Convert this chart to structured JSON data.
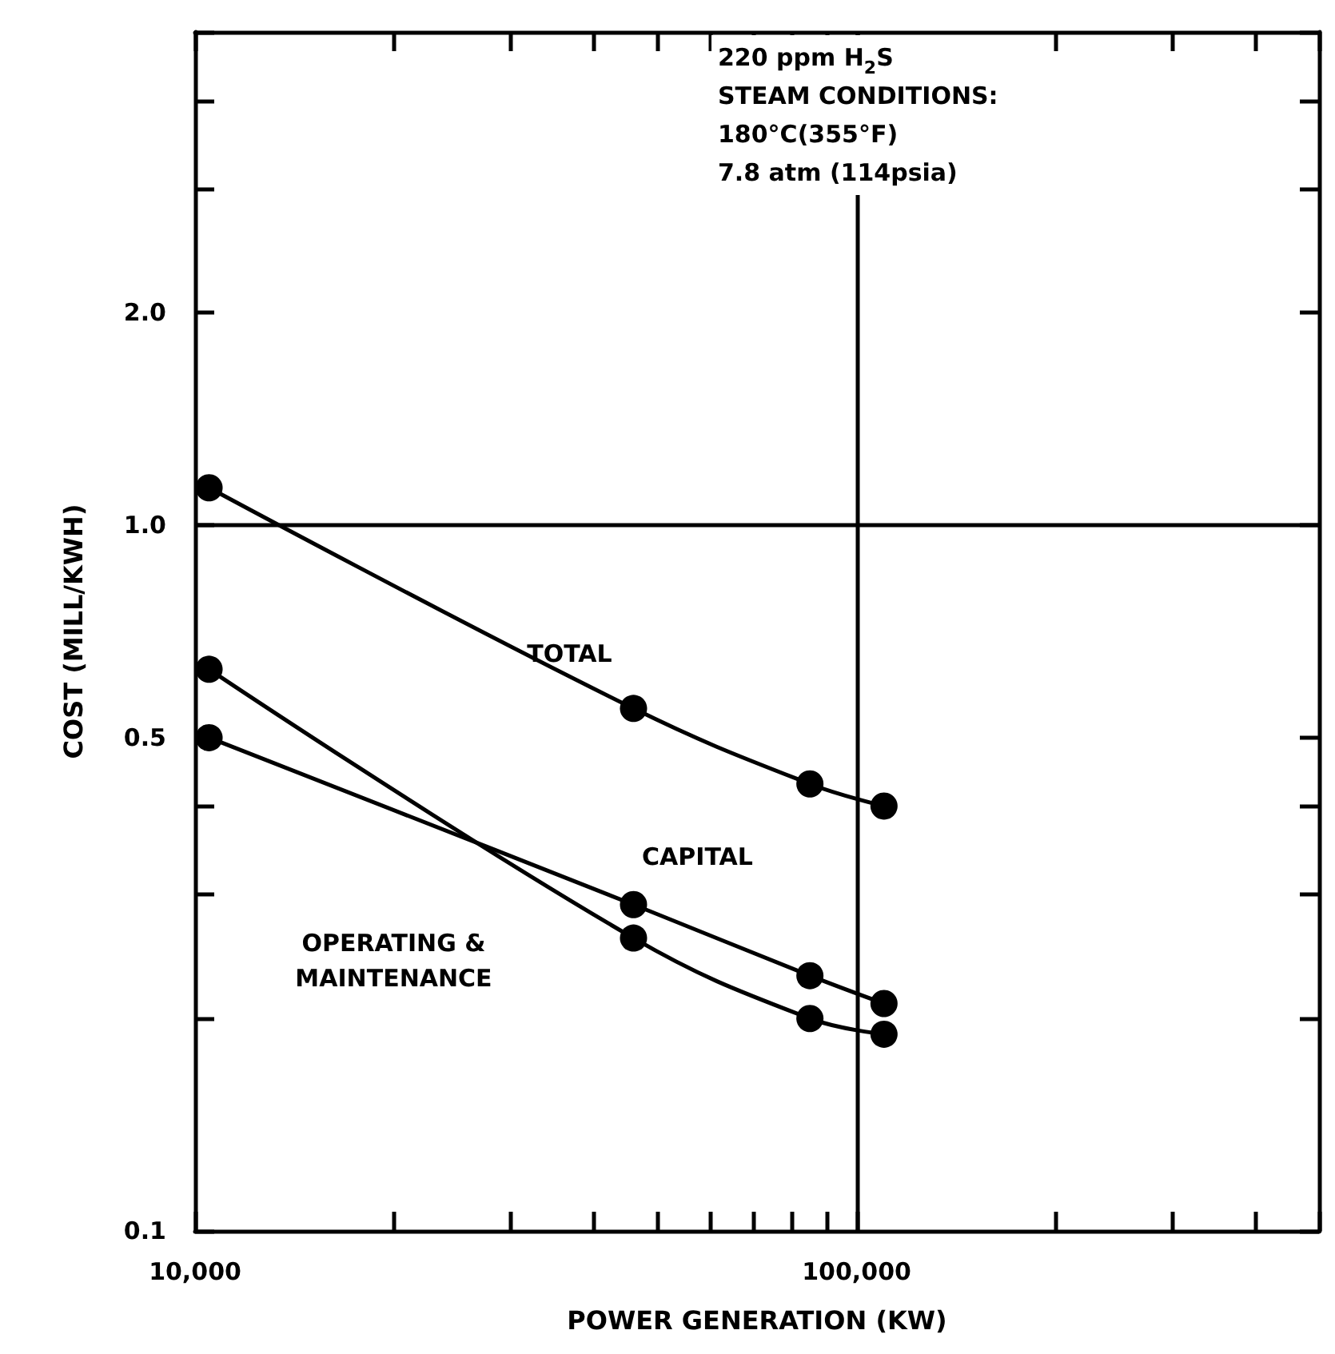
{
  "chart_data": {
    "type": "line",
    "xlabel": "POWER GENERATION (KW)",
    "ylabel": "COST (MILL/KWH)",
    "log": "xy",
    "xlim": [
      10000,
      500000
    ],
    "ylim": [
      0.1,
      5
    ],
    "xticks": [
      {
        "value": 10000,
        "label": "10,000"
      },
      {
        "value": 20000,
        "label": null
      },
      {
        "value": 30000,
        "label": null
      },
      {
        "value": 40000,
        "label": null
      },
      {
        "value": 50000,
        "label": null
      },
      {
        "value": 60000,
        "label": null
      },
      {
        "value": 70000,
        "label": null
      },
      {
        "value": 80000,
        "label": null
      },
      {
        "value": 90000,
        "label": null
      },
      {
        "value": 100000,
        "label": "100,000"
      },
      {
        "value": 200000,
        "label": null
      },
      {
        "value": 300000,
        "label": null
      },
      {
        "value": 400000,
        "label": null
      },
      {
        "value": 500000,
        "label": null
      }
    ],
    "yticks": [
      {
        "value": 0.1,
        "label": "0.1"
      },
      {
        "value": 0.2,
        "label": null
      },
      {
        "value": 0.3,
        "label": null
      },
      {
        "value": 0.4,
        "label": null
      },
      {
        "value": 0.5,
        "label": "0.5"
      },
      {
        "value": 1,
        "label": "1.0"
      },
      {
        "value": 2,
        "label": "2.0"
      },
      {
        "value": 3,
        "label": null
      },
      {
        "value": 4,
        "label": null
      },
      {
        "value": 5,
        "label": null
      }
    ],
    "x": [
      10500,
      46000,
      85000,
      110000
    ],
    "series": [
      {
        "name": "TOTAL",
        "color": "#000000",
        "values": [
          1.13,
          0.55,
          0.43,
          0.4
        ]
      },
      {
        "name": "CAPITAL",
        "color": "#000000",
        "values": [
          0.5,
          0.29,
          0.23,
          0.21
        ]
      },
      {
        "name": "OPERATING &\nMAINTENANCE",
        "color": "#000000",
        "values": [
          0.625,
          0.26,
          0.2,
          0.19
        ]
      }
    ],
    "marker": "circle",
    "line_style": "solid",
    "grid": false,
    "ref_lines": [
      {
        "axis": "x",
        "value": 100000,
        "color": "#000000"
      },
      {
        "axis": "y",
        "value": 1,
        "color": "#000000"
      }
    ],
    "annotations": [
      "220 ppm H$_{2}$S\nSTEAM CONDITIONS:\n180°C(355°F)\n7.8 atm (114psia)"
    ]
  }
}
